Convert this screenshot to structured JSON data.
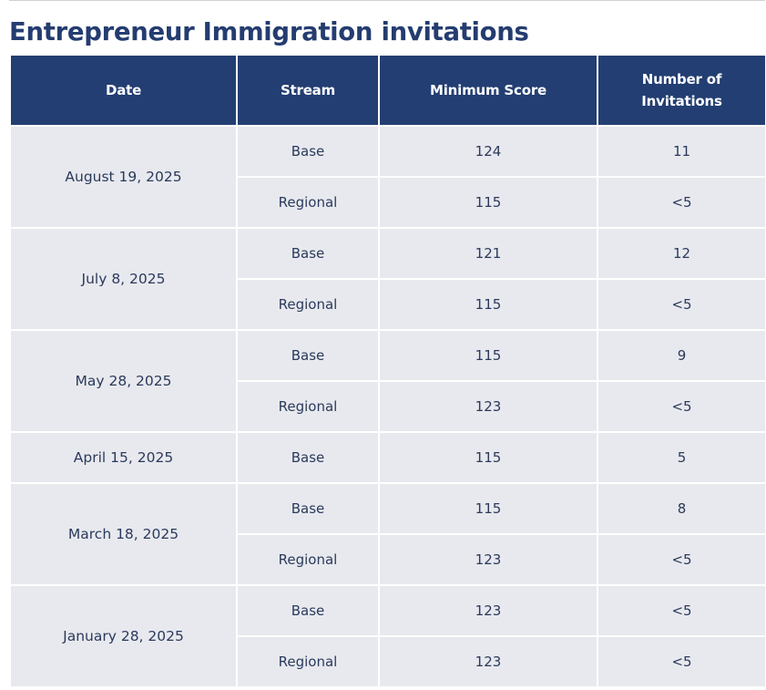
{
  "page": {
    "title": "Entrepreneur Immigration invitations"
  },
  "table": {
    "headers": {
      "date": "Date",
      "stream": "Stream",
      "minimum_score": "Minimum Score",
      "number_of_invitations_line1": "Number of",
      "number_of_invitations_line2": "Invitations"
    },
    "groups": [
      {
        "date": "August 19, 2025",
        "rows": [
          {
            "stream": "Base",
            "minimum_score": "124",
            "invitations": "11"
          },
          {
            "stream": "Regional",
            "minimum_score": "115",
            "invitations": "<5"
          }
        ]
      },
      {
        "date": "July 8, 2025",
        "rows": [
          {
            "stream": "Base",
            "minimum_score": "121",
            "invitations": "12"
          },
          {
            "stream": "Regional",
            "minimum_score": "115",
            "invitations": "<5"
          }
        ]
      },
      {
        "date": "May 28, 2025",
        "rows": [
          {
            "stream": "Base",
            "minimum_score": "115",
            "invitations": "9"
          },
          {
            "stream": "Regional",
            "minimum_score": "123",
            "invitations": "<5"
          }
        ]
      },
      {
        "date": "April 15, 2025",
        "rows": [
          {
            "stream": "Base",
            "minimum_score": "115",
            "invitations": "5"
          }
        ]
      },
      {
        "date": "March 18, 2025",
        "rows": [
          {
            "stream": "Base",
            "minimum_score": "115",
            "invitations": "8"
          },
          {
            "stream": "Regional",
            "minimum_score": "123",
            "invitations": "<5"
          }
        ]
      },
      {
        "date": "January 28, 2025",
        "rows": [
          {
            "stream": "Base",
            "minimum_score": "123",
            "invitations": "<5"
          },
          {
            "stream": "Regional",
            "minimum_score": "123",
            "invitations": "<5"
          }
        ]
      }
    ]
  }
}
